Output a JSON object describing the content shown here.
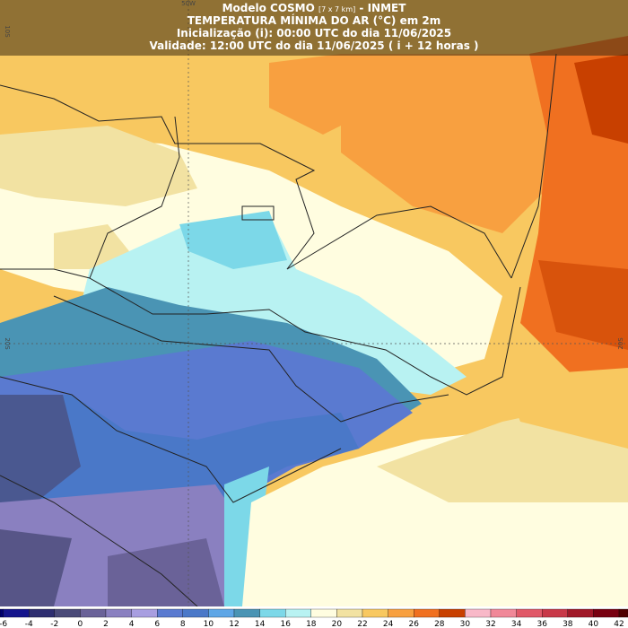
{
  "header": {
    "model": "Modelo COSMO",
    "resolution": "[7 x 7 km]",
    "institute": "- INMET",
    "variable": "TEMPERATURA MÍNIMA DO AR (°C) em 2m",
    "init": "Inicialização (i): 00:00 UTC do dia 11/06/2025",
    "valid": "Validade: 12:00 UTC do dia 11/06/2025 ( i + 12 horas )"
  },
  "grid_labels": {
    "lon": "50W",
    "lat_top": "10S",
    "lat_left": "20S",
    "lat_right": "20S"
  },
  "colorbar": {
    "ticks": [
      -6,
      -4,
      -2,
      0,
      2,
      4,
      6,
      8,
      10,
      12,
      14,
      16,
      18,
      20,
      22,
      24,
      26,
      28,
      30,
      32,
      34,
      36,
      38,
      40,
      42
    ],
    "colors": [
      "#000070",
      "#14148c",
      "#2e2e70",
      "#4a4a78",
      "#6a6298",
      "#8a80c0",
      "#a89ee0",
      "#5a7ad0",
      "#4a78c8",
      "#5ea6e6",
      "#4a94b4",
      "#7cd8e8",
      "#b8f2f2",
      "#fffde0",
      "#f2e2a2",
      "#f8c860",
      "#f8a040",
      "#f07020",
      "#c84000",
      "#f8b8c8",
      "#f08898",
      "#e05868",
      "#c83848",
      "#a01828",
      "#780010",
      "#500000"
    ]
  }
}
